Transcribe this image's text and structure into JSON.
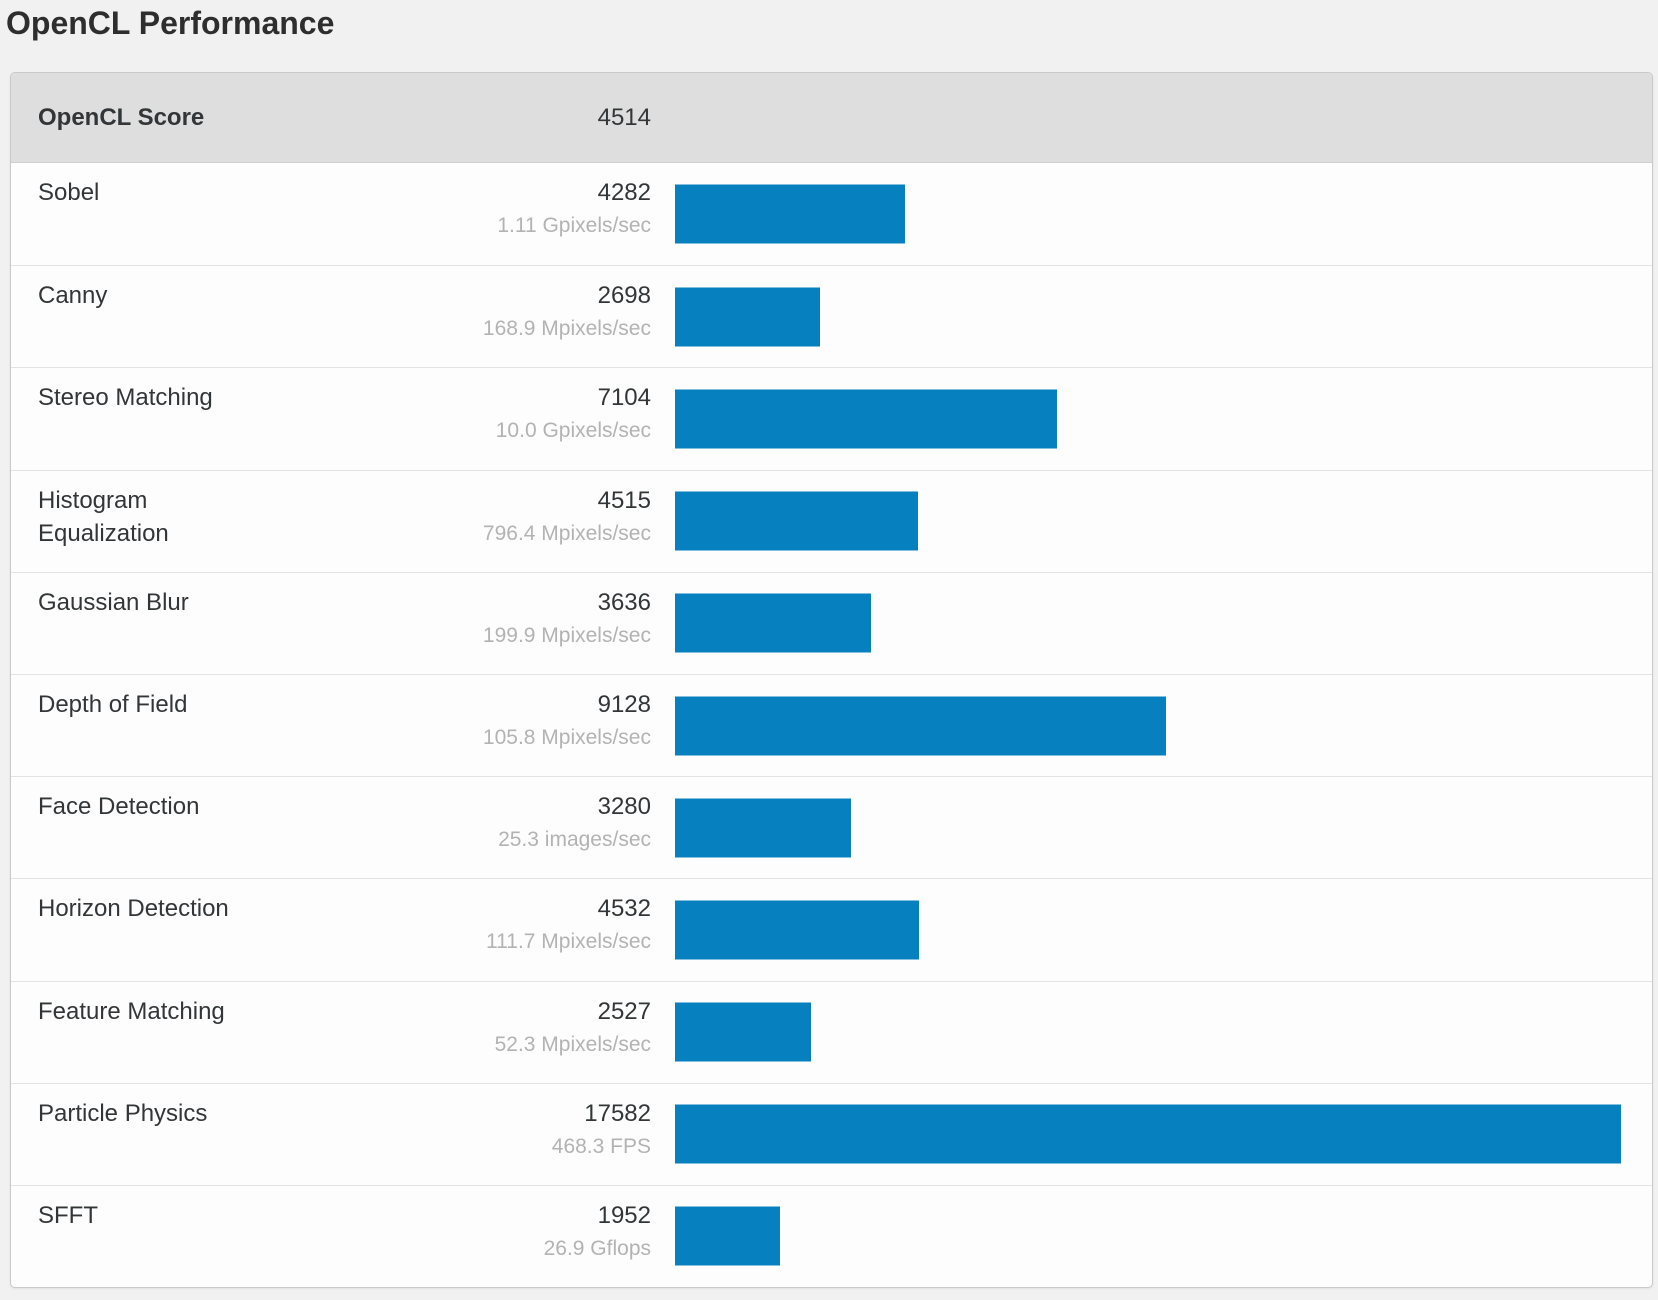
{
  "page_title": "OpenCL Performance",
  "table": {
    "header": {
      "label": "OpenCL Score",
      "value": "4514"
    }
  },
  "colors": {
    "bar_blue": "#0680bf",
    "header_background": "#dedede",
    "page_background": "#f1f1f1",
    "rate_text": "#b3b3b3",
    "dark_text": "#333638"
  },
  "chart_data": {
    "type": "bar",
    "orientation": "horizontal",
    "title": "OpenCL Performance",
    "overall_label": "OpenCL Score",
    "overall_score": 4514,
    "max_value": 17582,
    "categories": [
      "Sobel",
      "Canny",
      "Stereo Matching",
      "Histogram Equalization",
      "Gaussian Blur",
      "Depth of Field",
      "Face Detection",
      "Horizon Detection",
      "Feature Matching",
      "Particle Physics",
      "SFFT"
    ],
    "values": [
      4282,
      2698,
      7104,
      4515,
      3636,
      9128,
      3280,
      4532,
      2527,
      17582,
      1952
    ],
    "rates": [
      "1.11 Gpixels/sec",
      "168.9 Mpixels/sec",
      "10.0 Gpixels/sec",
      "796.4 Mpixels/sec",
      "199.9 Mpixels/sec",
      "105.8 Mpixels/sec",
      "25.3 images/sec",
      "111.7 Mpixels/sec",
      "52.3 Mpixels/sec",
      "468.3 FPS",
      "26.9 Gflops"
    ],
    "legend": "none",
    "grid": "off",
    "bar_color": "#0680bf"
  }
}
